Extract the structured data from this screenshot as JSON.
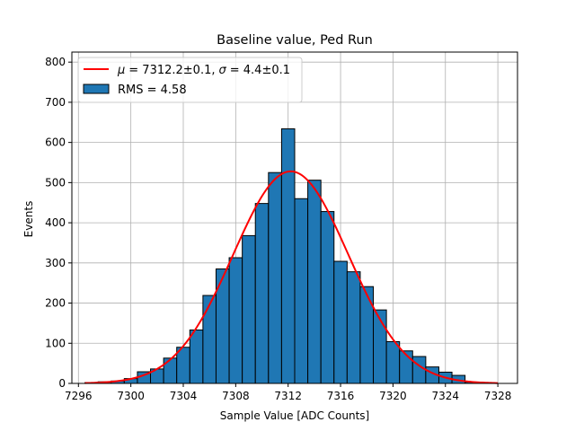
{
  "chart_data": {
    "type": "bar",
    "title": "Baseline value, Ped Run",
    "xlabel": "Sample Value [ADC Counts]",
    "ylabel": "Events",
    "xlim": [
      7295.5,
      7329.5
    ],
    "ylim": [
      0,
      825
    ],
    "grid": true,
    "legend_position": "top-left",
    "x_ticks": [
      7296,
      7300,
      7304,
      7308,
      7312,
      7316,
      7320,
      7324,
      7328
    ],
    "y_ticks": [
      0,
      100,
      200,
      300,
      400,
      500,
      600,
      700,
      800
    ],
    "bin_width": 1,
    "bins": [
      {
        "x": 7297,
        "count": 2
      },
      {
        "x": 7298,
        "count": 4
      },
      {
        "x": 7299,
        "count": 6
      },
      {
        "x": 7300,
        "count": 12
      },
      {
        "x": 7301,
        "count": 29
      },
      {
        "x": 7302,
        "count": 36
      },
      {
        "x": 7303,
        "count": 63
      },
      {
        "x": 7304,
        "count": 90
      },
      {
        "x": 7305,
        "count": 133
      },
      {
        "x": 7306,
        "count": 219
      },
      {
        "x": 7307,
        "count": 285
      },
      {
        "x": 7308,
        "count": 313
      },
      {
        "x": 7309,
        "count": 368
      },
      {
        "x": 7310,
        "count": 448
      },
      {
        "x": 7311,
        "count": 525
      },
      {
        "x": 7312,
        "count": 634
      },
      {
        "x": 7313,
        "count": 460
      },
      {
        "x": 7314,
        "count": 506
      },
      {
        "x": 7315,
        "count": 428
      },
      {
        "x": 7316,
        "count": 304
      },
      {
        "x": 7317,
        "count": 278
      },
      {
        "x": 7318,
        "count": 241
      },
      {
        "x": 7319,
        "count": 183
      },
      {
        "x": 7320,
        "count": 104
      },
      {
        "x": 7321,
        "count": 81
      },
      {
        "x": 7322,
        "count": 67
      },
      {
        "x": 7323,
        "count": 41
      },
      {
        "x": 7324,
        "count": 28
      },
      {
        "x": 7325,
        "count": 20
      },
      {
        "x": 7326,
        "count": 3
      },
      {
        "x": 7327,
        "count": 1
      }
    ],
    "fit": {
      "type": "gaussian",
      "mu": 7312.2,
      "sigma": 4.4,
      "amplitude": 528,
      "x_range": [
        7296.5,
        7328
      ],
      "color": "#ff0000"
    },
    "legend": {
      "fit_label_mu": "μ",
      "fit_label_text": "= 7312.2±0.1,",
      "fit_label_sigma": "σ",
      "fit_label_text2": "= 4.4±0.1",
      "hist_label": "RMS = 4.58"
    },
    "colors": {
      "bar_fill": "#1f77b4",
      "bar_edge": "#000000",
      "grid": "#b0b0b0",
      "fit": "#ff0000"
    }
  }
}
